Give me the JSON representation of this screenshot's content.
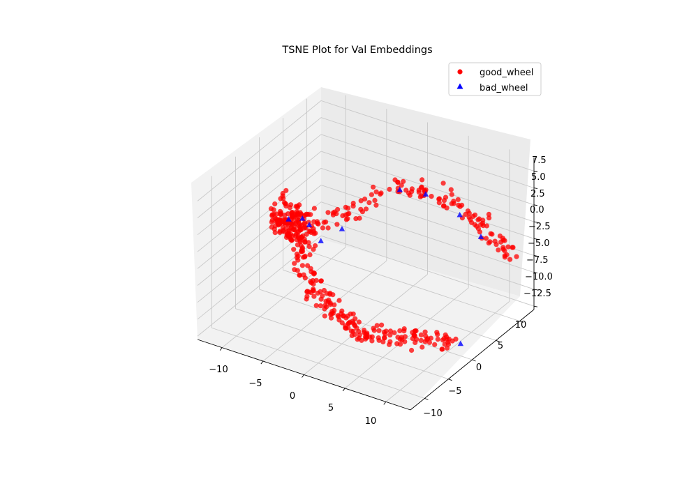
{
  "chart_data": {
    "type": "scatter",
    "projection": "3d",
    "title": "TSNE Plot for Val Embeddings",
    "xlabel": "",
    "ylabel": "",
    "zlabel": "",
    "xlim": [
      -13,
      13
    ],
    "ylim": [
      -13,
      13
    ],
    "zlim": [
      -13,
      9.5
    ],
    "x_ticks": [
      -10,
      -5,
      0,
      5,
      10
    ],
    "y_ticks": [
      -10,
      -5,
      0,
      5,
      10
    ],
    "z_ticks": [
      7.5,
      5.0,
      2.5,
      0.0,
      -2.5,
      -5.0,
      -7.5,
      -10.0,
      -12.5
    ],
    "x_tick_labels": [
      "−10",
      "−5",
      "0",
      "5",
      "10"
    ],
    "y_tick_labels": [
      "−10",
      "−5",
      "0",
      "5",
      "10"
    ],
    "z_tick_labels": [
      "7.5",
      "5.0",
      "2.5",
      "0.0",
      "−2.5",
      "−5.0",
      "−7.5",
      "−10.0",
      "−12.5"
    ],
    "grid": true,
    "legend_position": "top-right",
    "series": [
      {
        "name": "good_wheel",
        "marker": "circle",
        "color": "#ff0000",
        "description": "approx. 600 points forming a curved band; values approximate",
        "approx_points": [
          [
            -12,
            2,
            -3
          ],
          [
            -11,
            1,
            -2
          ],
          [
            -10,
            0,
            -2.5
          ],
          [
            -9,
            -1,
            -1
          ],
          [
            -8,
            -2,
            0
          ],
          [
            -7,
            -3,
            1
          ],
          [
            -6,
            -4,
            0
          ],
          [
            -5,
            -5,
            1
          ],
          [
            -4,
            -6,
            -1
          ],
          [
            -3,
            -7,
            -3
          ],
          [
            -2,
            -7,
            -5
          ],
          [
            -1,
            -6,
            -7
          ],
          [
            0,
            -5,
            -9
          ],
          [
            1,
            -4,
            -11
          ],
          [
            2,
            -3,
            -12
          ],
          [
            4,
            -2,
            -12
          ],
          [
            6,
            -1,
            -12
          ],
          [
            8,
            0,
            -12
          ],
          [
            10,
            1,
            -12
          ]
        ]
      },
      {
        "name": "bad_wheel",
        "marker": "triangle",
        "color": "#0000ff",
        "description": "approx. 30 points scattered along the same manifold; values approximate",
        "approx_points": [
          [
            -10,
            1,
            -2
          ],
          [
            -6,
            -3,
            2
          ],
          [
            -4,
            -5,
            3
          ],
          [
            -2,
            -6,
            2
          ],
          [
            0,
            -5,
            4
          ],
          [
            3,
            2,
            7
          ],
          [
            5,
            4,
            6
          ],
          [
            8,
            6,
            3
          ],
          [
            10,
            7,
            0
          ],
          [
            11,
            1,
            -12
          ]
        ]
      }
    ]
  }
}
